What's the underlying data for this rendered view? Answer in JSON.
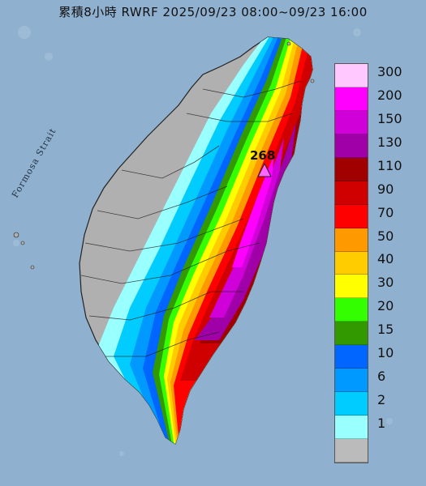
{
  "title": "累積8小時 RWRF 2025/09/23 08:00~09/23 16:00",
  "strait_label": "Formosa Strait",
  "max_label": "268",
  "legend": [
    {
      "value": "300",
      "color": "#ffc8ff"
    },
    {
      "value": "200",
      "color": "#ff00ff"
    },
    {
      "value": "150",
      "color": "#d000d8"
    },
    {
      "value": "130",
      "color": "#a000a8"
    },
    {
      "value": "110",
      "color": "#a00000"
    },
    {
      "value": "90",
      "color": "#d00000"
    },
    {
      "value": "70",
      "color": "#ff0000"
    },
    {
      "value": "50",
      "color": "#ff9900"
    },
    {
      "value": "40",
      "color": "#ffcc00"
    },
    {
      "value": "30",
      "color": "#ffff00"
    },
    {
      "value": "20",
      "color": "#33ff00"
    },
    {
      "value": "15",
      "color": "#339900"
    },
    {
      "value": "10",
      "color": "#0066ff"
    },
    {
      "value": "6",
      "color": "#0099ff"
    },
    {
      "value": "2",
      "color": "#00ccff"
    },
    {
      "value": "1",
      "color": "#99ffff"
    },
    {
      "value": "",
      "color": "#bbbbbb"
    }
  ]
}
